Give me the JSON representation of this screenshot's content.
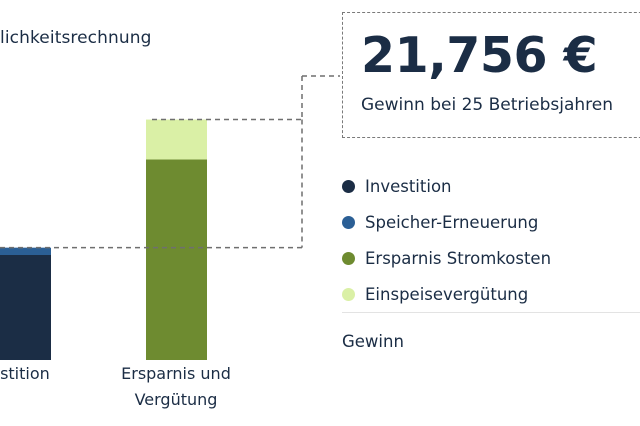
{
  "title": "lichkeitsrechnung",
  "callout": {
    "value": "21,756 €",
    "caption": "Gewinn bei 25 Betriebsjahren"
  },
  "legend": {
    "items": [
      {
        "label": "Investition",
        "color": "#1b2d45"
      },
      {
        "label": "Speicher-Erneuerung",
        "color": "#2b5f95"
      },
      {
        "label": "Ersparnis Stromkosten",
        "color": "#6e8b30"
      },
      {
        "label": "Einspeisevergütung",
        "color": "#daf0a6"
      }
    ],
    "gewinn_label": "Gewinn"
  },
  "chart_data": {
    "type": "bar",
    "stacked": true,
    "categories": [
      "estition",
      "Ersparnis und Vergütung"
    ],
    "series": [
      {
        "name": "Investition",
        "color": "#1b2d45",
        "values": [
          100,
          0
        ]
      },
      {
        "name": "Speicher-Erneuerung",
        "color": "#2b5f95",
        "values": [
          7,
          0
        ]
      },
      {
        "name": "Ersparnis Stromkosten",
        "color": "#6e8b30",
        "values": [
          0,
          191
        ]
      },
      {
        "name": "Einspeisevergütung",
        "color": "#daf0a6",
        "values": [
          0,
          38
        ]
      }
    ],
    "ylim": [
      0,
      240
    ],
    "grid": false,
    "legend_position": "right"
  }
}
